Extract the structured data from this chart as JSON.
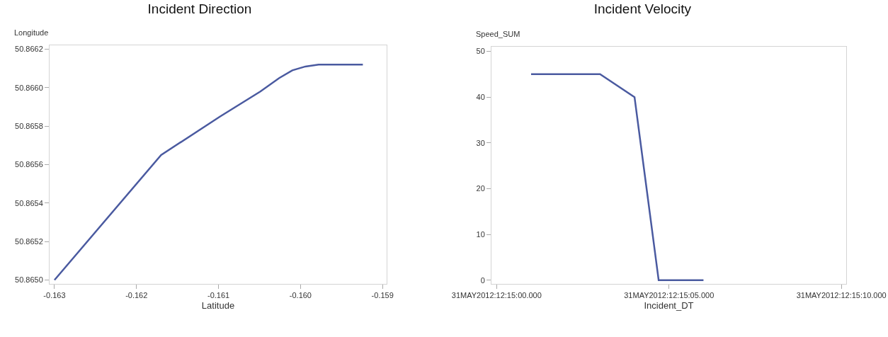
{
  "chart_data": [
    {
      "type": "line",
      "title": "Incident Direction",
      "xlabel": "Latitude",
      "ylabel": "Longitude",
      "x": [
        -0.163,
        -0.1617,
        -0.16098,
        -0.16049,
        -0.16026,
        -0.1601,
        -0.15994,
        -0.15978,
        -0.15924
      ],
      "series": [
        {
          "color": "#4a5aa0",
          "values": [
            50.865,
            50.86565,
            50.86585,
            50.86598,
            50.86605,
            50.86609,
            50.86611,
            50.86612,
            50.86612
          ]
        }
      ],
      "xlim": [
        -0.16306,
        -0.15895
      ],
      "xticks": [
        -0.163,
        -0.162,
        -0.161,
        {
          "value": -0.16,
          "label": "-0.160"
        },
        -0.159
      ],
      "ylim": [
        50.86498,
        50.86622
      ],
      "yticks": [
        {
          "value": 50.865,
          "label": "50.8650"
        },
        50.8652,
        50.8654,
        50.8656,
        50.8658,
        {
          "value": 50.866,
          "label": "50.8660"
        },
        50.8662
      ],
      "grid": false,
      "marker": "none",
      "line_style": "solid"
    },
    {
      "type": "line",
      "title": "Incident Velocity",
      "xlabel": "Incident_DT",
      "ylabel": "Speed_SUM",
      "x": [
        "2012-05-31T12:15:01",
        "2012-05-31T12:15:03",
        "2012-05-31T12:15:04",
        "2012-05-31T12:15:04.7",
        "2012-05-31T12:15:06"
      ],
      "series": [
        {
          "color": "#4a5aa0",
          "values": [
            45,
            45,
            40,
            0,
            0
          ]
        }
      ],
      "xlim": [
        "2012-05-31T12:14:59.85",
        "2012-05-31T12:15:10.14"
      ],
      "xticks": [
        {
          "value": "2012-05-31T12:15:00",
          "label": "31MAY2012:12:15:00.000"
        },
        {
          "value": "2012-05-31T12:15:05",
          "label": "31MAY2012:12:15:05.000"
        },
        {
          "value": "2012-05-31T12:15:10",
          "label": "31MAY2012:12:15:10.000"
        }
      ],
      "ylim": [
        -0.8,
        51
      ],
      "yticks": [
        0,
        10,
        20,
        30,
        40,
        50
      ],
      "grid": false,
      "marker": "none",
      "line_style": "solid"
    }
  ]
}
